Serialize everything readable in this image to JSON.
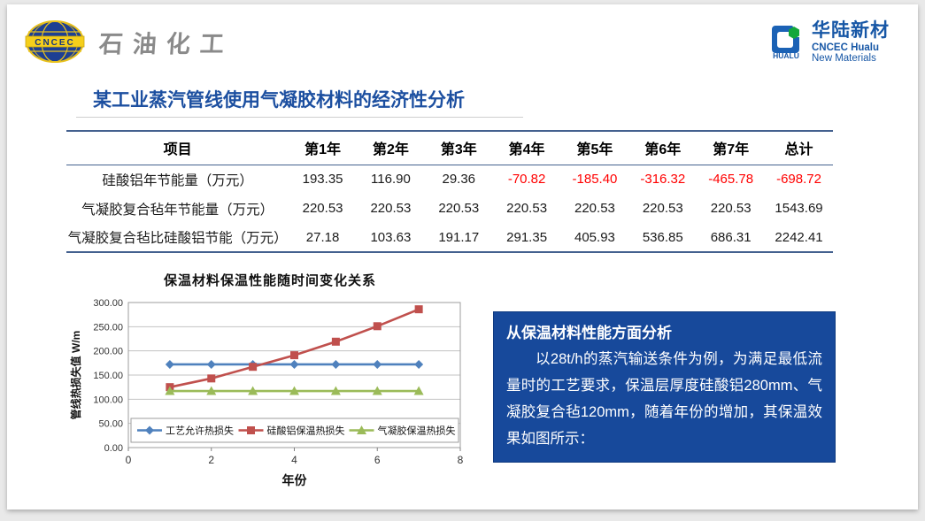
{
  "header": {
    "left_logo": {
      "badge_text": "CNCEC",
      "brand_text": "石油化工"
    },
    "right_logo": {
      "mark_text": "HUALU",
      "name_cn": "华陆新材",
      "name_en_line1": "CNCEC Hualu",
      "name_en_line2": "New Materials"
    }
  },
  "title": "某工业蒸汽管线使用气凝胶材料的经济性分析",
  "table": {
    "columns": [
      "项目",
      "第1年",
      "第2年",
      "第3年",
      "第4年",
      "第5年",
      "第6年",
      "第7年",
      "总计"
    ],
    "rows": [
      {
        "label": "硅酸铝年节能量（万元）",
        "values": [
          "193.35",
          "116.90",
          "29.36",
          "-70.82",
          "-185.40",
          "-316.32",
          "-465.78",
          "-698.72"
        ]
      },
      {
        "label": "气凝胶复合毡年节能量（万元）",
        "values": [
          "220.53",
          "220.53",
          "220.53",
          "220.53",
          "220.53",
          "220.53",
          "220.53",
          "1543.69"
        ]
      },
      {
        "label": "气凝胶复合毡比硅酸铝节能（万元）",
        "values": [
          "27.18",
          "103.63",
          "191.17",
          "291.35",
          "405.93",
          "536.85",
          "686.31",
          "2242.41"
        ]
      }
    ]
  },
  "chart_data": {
    "type": "line",
    "title": "保温材料保温性能随时间变化关系",
    "xlabel": "年份",
    "ylabel": "管线热损失值 W/m",
    "x": [
      1,
      2,
      3,
      4,
      5,
      6,
      7
    ],
    "xlim": [
      0,
      8
    ],
    "xticks": [
      0,
      2,
      4,
      6,
      8
    ],
    "ylim": [
      0,
      300
    ],
    "ytick_step": 50,
    "grid": true,
    "legend_position": "bottom-inside",
    "series": [
      {
        "name": "工艺允许热损失",
        "color": "#4F81BD",
        "marker": "diamond",
        "values": [
          172,
          172,
          172,
          172,
          172,
          172,
          172
        ]
      },
      {
        "name": "硅酸铝保温热损失",
        "color": "#C0504D",
        "marker": "square",
        "values": [
          125,
          143,
          167,
          191,
          219,
          251,
          286
        ]
      },
      {
        "name": "气凝胶保温热损失",
        "color": "#9BBB59",
        "marker": "triangle",
        "values": [
          117,
          117,
          117,
          117,
          117,
          117,
          117
        ]
      }
    ]
  },
  "analysis_box": {
    "heading": "从保温材料性能方面分析",
    "body": "以28t/h的蒸汽输送条件为例，为满足最低流量时的工艺要求，保温层厚度硅酸铝280mm、气凝胶复合毡120mm，随着年份的增加，其保温效果如图所示："
  },
  "colors": {
    "accent_blue": "#1C4FA0",
    "box_blue": "#17499B",
    "negative_red": "#FF0000",
    "table_rule": "#44618F",
    "series_blue": "#4F81BD",
    "series_red": "#C0504D",
    "series_green": "#9BBB59"
  }
}
